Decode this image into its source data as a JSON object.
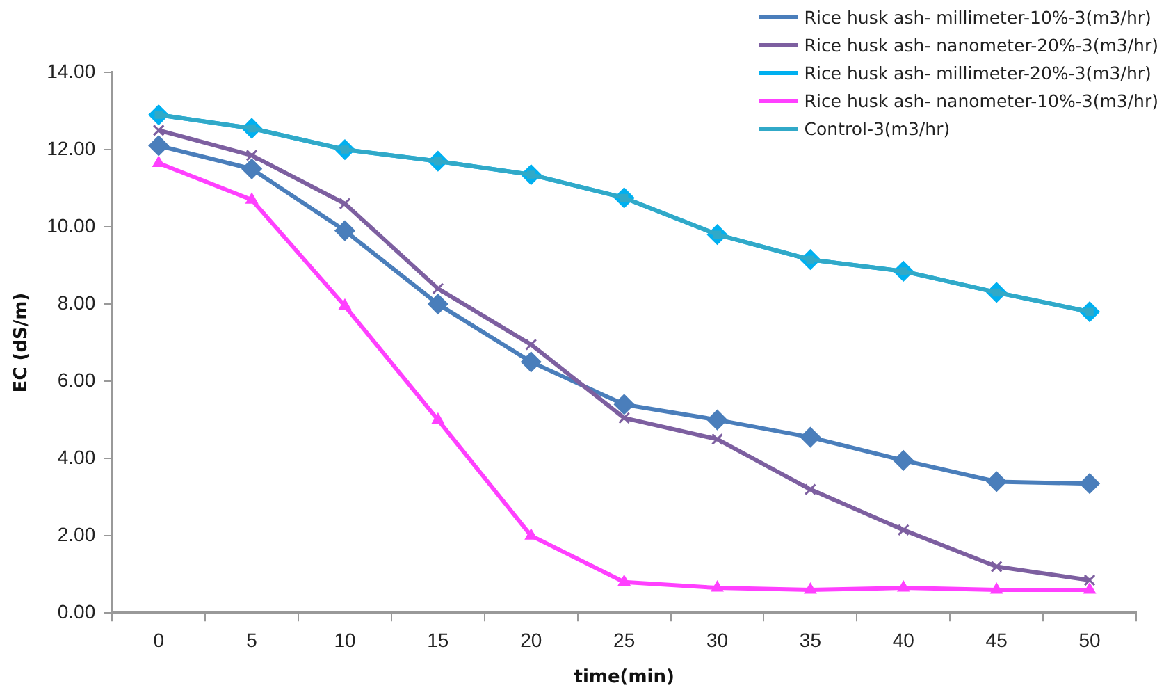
{
  "chart_data": {
    "type": "line",
    "xlabel": "time(min)",
    "ylabel": "EC (dS/m)",
    "categories": [
      "0",
      "5",
      "10",
      "15",
      "20",
      "25",
      "30",
      "35",
      "40",
      "45",
      "50"
    ],
    "series": [
      {
        "name": "Rice husk ash- millimeter-10%-3(m3/hr)",
        "color": "#4a7ebb",
        "marker": "diamond",
        "values": [
          12.1,
          11.5,
          9.9,
          8.0,
          6.5,
          5.4,
          5.0,
          4.55,
          3.95,
          3.4,
          3.35
        ]
      },
      {
        "name": "Rice husk ash- nanometer-20%-3(m3/hr)",
        "color": "#7d5fa0",
        "marker": "cross",
        "values": [
          12.5,
          11.85,
          10.6,
          8.4,
          6.95,
          5.05,
          4.5,
          3.2,
          2.15,
          1.2,
          0.85
        ]
      },
      {
        "name": "Rice husk ash- millimeter-20%-3(m3/hr)",
        "color": "#00b0f0",
        "marker": "diamond",
        "values": [
          12.9,
          12.55,
          12.0,
          11.7,
          11.35,
          10.75,
          9.8,
          9.15,
          8.85,
          8.3,
          7.8
        ]
      },
      {
        "name": "Rice husk ash- nanometer-10%-3(m3/hr)",
        "color": "#ff40ff",
        "marker": "triangle",
        "values": [
          11.65,
          10.7,
          7.95,
          5.0,
          2.0,
          0.8,
          0.65,
          0.6,
          0.65,
          0.6,
          0.6
        ]
      },
      {
        "name": "Control-3(m3/hr)",
        "color": "#31a9c8",
        "marker": "square",
        "values": [
          12.9,
          12.55,
          12.0,
          11.7,
          11.35,
          10.75,
          9.8,
          9.15,
          8.85,
          8.3,
          7.8
        ]
      }
    ],
    "ylim": [
      0,
      14
    ],
    "yticks": [
      {
        "value": 0,
        "label": "0.00"
      },
      {
        "value": 2,
        "label": "2.00"
      },
      {
        "value": 4,
        "label": "4.00"
      },
      {
        "value": 6,
        "label": "6.00"
      },
      {
        "value": 8,
        "label": "8.00"
      },
      {
        "value": 10,
        "label": "10.00"
      },
      {
        "value": 12,
        "label": "12.00"
      },
      {
        "value": 14,
        "label": "14.00"
      }
    ],
    "grid": false,
    "legend": "top right"
  }
}
